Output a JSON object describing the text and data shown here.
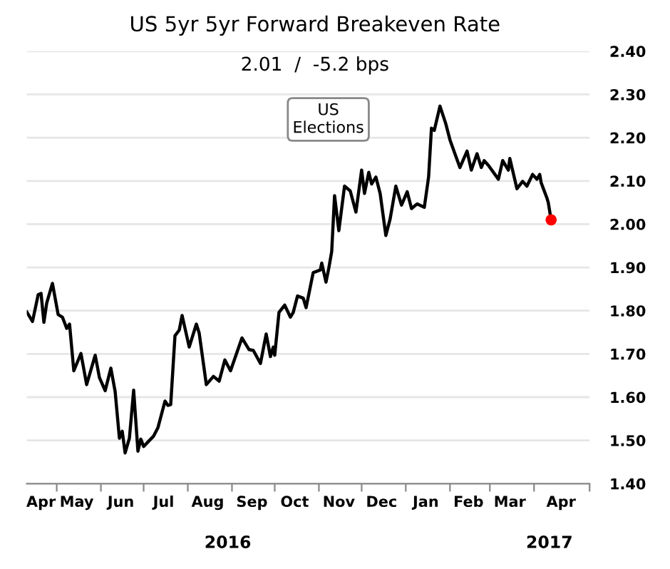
{
  "chart_data": {
    "type": "line",
    "title": "US 5yr 5yr Forward Breakeven Rate",
    "subtitle": "2.01  /  -5.2 bps",
    "x": [
      "2016-04-10",
      "2016-04-14",
      "2016-04-18",
      "2016-04-20",
      "2016-04-22",
      "2016-04-24",
      "2016-04-28",
      "2016-05-02",
      "2016-05-05",
      "2016-05-08",
      "2016-05-10",
      "2016-05-13",
      "2016-05-18",
      "2016-05-22",
      "2016-05-28",
      "2016-05-31",
      "2016-06-04",
      "2016-06-08",
      "2016-06-11",
      "2016-06-14",
      "2016-06-16",
      "2016-06-18",
      "2016-06-21",
      "2016-06-24",
      "2016-06-27",
      "2016-06-29",
      "2016-07-01",
      "2016-07-08",
      "2016-07-11",
      "2016-07-16",
      "2016-07-18",
      "2016-07-20",
      "2016-07-23",
      "2016-07-26",
      "2016-07-28",
      "2016-08-02",
      "2016-08-07",
      "2016-08-09",
      "2016-08-14",
      "2016-08-19",
      "2016-08-23",
      "2016-08-27",
      "2016-08-31",
      "2016-09-08",
      "2016-09-13",
      "2016-09-16",
      "2016-09-21",
      "2016-09-25",
      "2016-09-28",
      "2016-09-30",
      "2016-10-01",
      "2016-10-04",
      "2016-10-08",
      "2016-10-12",
      "2016-10-14",
      "2016-10-17",
      "2016-10-21",
      "2016-10-23",
      "2016-10-28",
      "2016-11-02",
      "2016-11-03",
      "2016-11-06",
      "2016-11-08",
      "2016-11-10",
      "2016-11-12",
      "2016-11-15",
      "2016-11-19",
      "2016-11-23",
      "2016-11-27",
      "2016-12-01",
      "2016-12-03",
      "2016-12-06",
      "2016-12-08",
      "2016-12-11",
      "2016-12-14",
      "2016-12-18",
      "2016-12-21",
      "2016-12-25",
      "2016-12-29",
      "2017-01-02",
      "2017-01-05",
      "2017-01-09",
      "2017-01-14",
      "2017-01-17",
      "2017-01-19",
      "2017-01-21",
      "2017-01-25",
      "2017-01-29",
      "2017-02-01",
      "2017-02-05",
      "2017-02-08",
      "2017-02-13",
      "2017-02-16",
      "2017-02-20",
      "2017-02-23",
      "2017-02-25",
      "2017-02-28",
      "2017-03-07",
      "2017-03-10",
      "2017-03-14",
      "2017-03-15",
      "2017-03-20",
      "2017-03-24",
      "2017-03-27",
      "2017-03-31",
      "2017-04-03",
      "2017-04-05",
      "2017-04-06",
      "2017-04-10",
      "2017-04-11",
      "2017-04-13"
    ],
    "series": [
      {
        "color": "#000000",
        "marker": "none",
        "values": [
          1.797,
          1.775,
          1.837,
          1.84,
          1.773,
          1.818,
          1.863,
          1.791,
          1.785,
          1.759,
          1.769,
          1.661,
          1.701,
          1.629,
          1.697,
          1.645,
          1.615,
          1.667,
          1.613,
          1.505,
          1.521,
          1.471,
          1.505,
          1.616,
          1.475,
          1.503,
          1.486,
          1.51,
          1.529,
          1.591,
          1.581,
          1.583,
          1.742,
          1.755,
          1.789,
          1.716,
          1.769,
          1.748,
          1.629,
          1.648,
          1.637,
          1.686,
          1.661,
          1.737,
          1.71,
          1.708,
          1.678,
          1.746,
          1.694,
          1.716,
          1.697,
          1.796,
          1.813,
          1.785,
          1.796,
          1.834,
          1.829,
          1.807,
          1.888,
          1.894,
          1.91,
          1.866,
          1.899,
          1.937,
          2.066,
          1.985,
          2.088,
          2.077,
          2.028,
          2.125,
          2.071,
          2.12,
          2.093,
          2.109,
          2.071,
          1.974,
          2.012,
          2.088,
          2.044,
          2.075,
          2.036,
          2.047,
          2.039,
          2.109,
          2.222,
          2.217,
          2.273,
          2.233,
          2.195,
          2.158,
          2.131,
          2.169,
          2.125,
          2.163,
          2.131,
          2.147,
          2.136,
          2.104,
          2.147,
          2.125,
          2.152,
          2.082,
          2.099,
          2.088,
          2.115,
          2.104,
          2.115,
          2.096,
          2.061,
          2.05,
          2.01
        ]
      },
      {
        "type": "scatter",
        "marker": "circle",
        "color": "#ff0000",
        "x": [
          "2017-04-13"
        ],
        "values": [
          2.01
        ]
      }
    ],
    "xlim": [
      "2016-04-10",
      "2017-05-10"
    ],
    "xticks": [
      {
        "value": "2016-04-20",
        "label": "Apr"
      },
      {
        "value": "2016-05-01",
        "label": null
      },
      {
        "value": "2016-05-15",
        "label": "May"
      },
      {
        "value": "2016-06-01",
        "label": null
      },
      {
        "value": "2016-06-15",
        "label": "Jun"
      },
      {
        "value": "2016-07-01",
        "label": null
      },
      {
        "value": "2016-07-15",
        "label": "Jul"
      },
      {
        "value": "2016-08-01",
        "label": null
      },
      {
        "value": "2016-08-15",
        "label": "Aug"
      },
      {
        "value": "2016-09-01",
        "label": null
      },
      {
        "value": "2016-09-15",
        "label": "Sep"
      },
      {
        "value": "2016-10-01",
        "label": null
      },
      {
        "value": "2016-10-15",
        "label": "Oct"
      },
      {
        "value": "2016-11-01",
        "label": null
      },
      {
        "value": "2016-11-15",
        "label": "Nov"
      },
      {
        "value": "2016-12-01",
        "label": null
      },
      {
        "value": "2016-12-15",
        "label": "Dec"
      },
      {
        "value": "2017-01-01",
        "label": null
      },
      {
        "value": "2017-01-15",
        "label": "Jan"
      },
      {
        "value": "2017-02-01",
        "label": null
      },
      {
        "value": "2017-02-14",
        "label": "Feb"
      },
      {
        "value": "2017-03-01",
        "label": null
      },
      {
        "value": "2017-03-15",
        "label": "Mar"
      },
      {
        "value": "2017-04-01",
        "label": null
      },
      {
        "value": "2017-04-20",
        "label": "Apr"
      },
      {
        "value": "2017-05-10",
        "label": null
      }
    ],
    "ylim": [
      1.4,
      2.4
    ],
    "yticks": [
      {
        "value": 1.4,
        "label": "1.40"
      },
      {
        "value": 1.5,
        "label": "1.50"
      },
      {
        "value": 1.6,
        "label": "1.60"
      },
      {
        "value": 1.7,
        "label": "1.70"
      },
      {
        "value": 1.8,
        "label": "1.80"
      },
      {
        "value": 1.9,
        "label": "1.90"
      },
      {
        "value": 2.0,
        "label": "2.00"
      },
      {
        "value": 2.1,
        "label": "2.10"
      },
      {
        "value": 2.2,
        "label": "2.20"
      },
      {
        "value": 2.3,
        "label": "2.30"
      },
      {
        "value": 2.4,
        "label": "2.40"
      }
    ],
    "grid": "y",
    "legend": false,
    "line_style": "solid",
    "annotations": [
      "US\nElections",
      "2016",
      "2017"
    ]
  }
}
